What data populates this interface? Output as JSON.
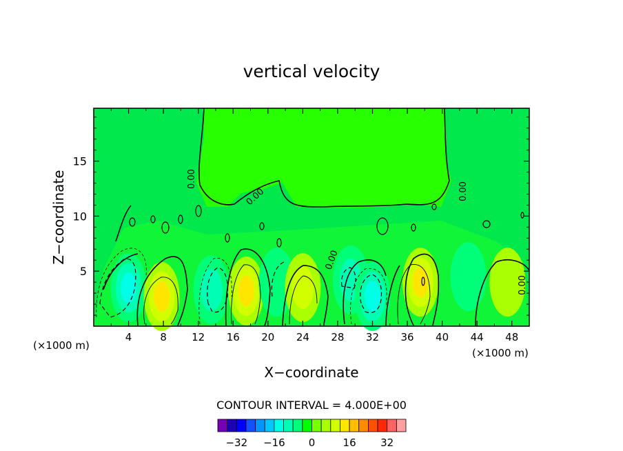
{
  "chart_data": {
    "type": "heatmap",
    "title": "vertical velocity",
    "xlabel": "X−coordinate",
    "ylabel": "Z−coordinate",
    "x_unit_left": "(×1000 m)",
    "x_unit_right": "(×1000 m)",
    "xlim": [
      0,
      50
    ],
    "ylim": [
      0,
      19.8
    ],
    "xticks": [
      4,
      8,
      12,
      16,
      20,
      24,
      28,
      32,
      36,
      40,
      44,
      48
    ],
    "yticks": [
      5,
      10,
      15
    ],
    "contour_interval_label": "CONTOUR INTERVAL = 4.000E+00",
    "contour_labels": [
      "0.00",
      "0.00",
      "0.00",
      "0.00",
      "0.00"
    ],
    "colorbar": {
      "tick_labels": [
        "−32",
        "−16",
        "0",
        "16",
        "32"
      ],
      "tick_values": [
        -32,
        -16,
        0,
        16,
        32
      ],
      "colors": [
        "#7800b4",
        "#1e00b4",
        "#0000ff",
        "#1450ff",
        "#0096ff",
        "#00c8ff",
        "#00ffe6",
        "#00ffb4",
        "#00ff78",
        "#00ff00",
        "#78ff00",
        "#aaff00",
        "#d2ff00",
        "#ffe600",
        "#ffbe00",
        "#ff8c00",
        "#ff5000",
        "#ff2800",
        "#ff6464",
        "#ffa0a0"
      ]
    },
    "cells": [
      {
        "x": 4,
        "z": 3.5,
        "value": -12
      },
      {
        "x": 7.8,
        "z": 2.7,
        "value": 12
      },
      {
        "x": 13.5,
        "z": 3.3,
        "value": -8
      },
      {
        "x": 17.5,
        "z": 3.2,
        "value": 12
      },
      {
        "x": 21,
        "z": 4,
        "value": -4
      },
      {
        "x": 24,
        "z": 3.5,
        "value": 8
      },
      {
        "x": 29.5,
        "z": 4.2,
        "value": -8
      },
      {
        "x": 32,
        "z": 2.7,
        "value": -12
      },
      {
        "x": 37.5,
        "z": 4,
        "value": 12
      },
      {
        "x": 43,
        "z": 4.5,
        "value": -4
      },
      {
        "x": 47.5,
        "z": 4,
        "value": 4
      }
    ]
  }
}
